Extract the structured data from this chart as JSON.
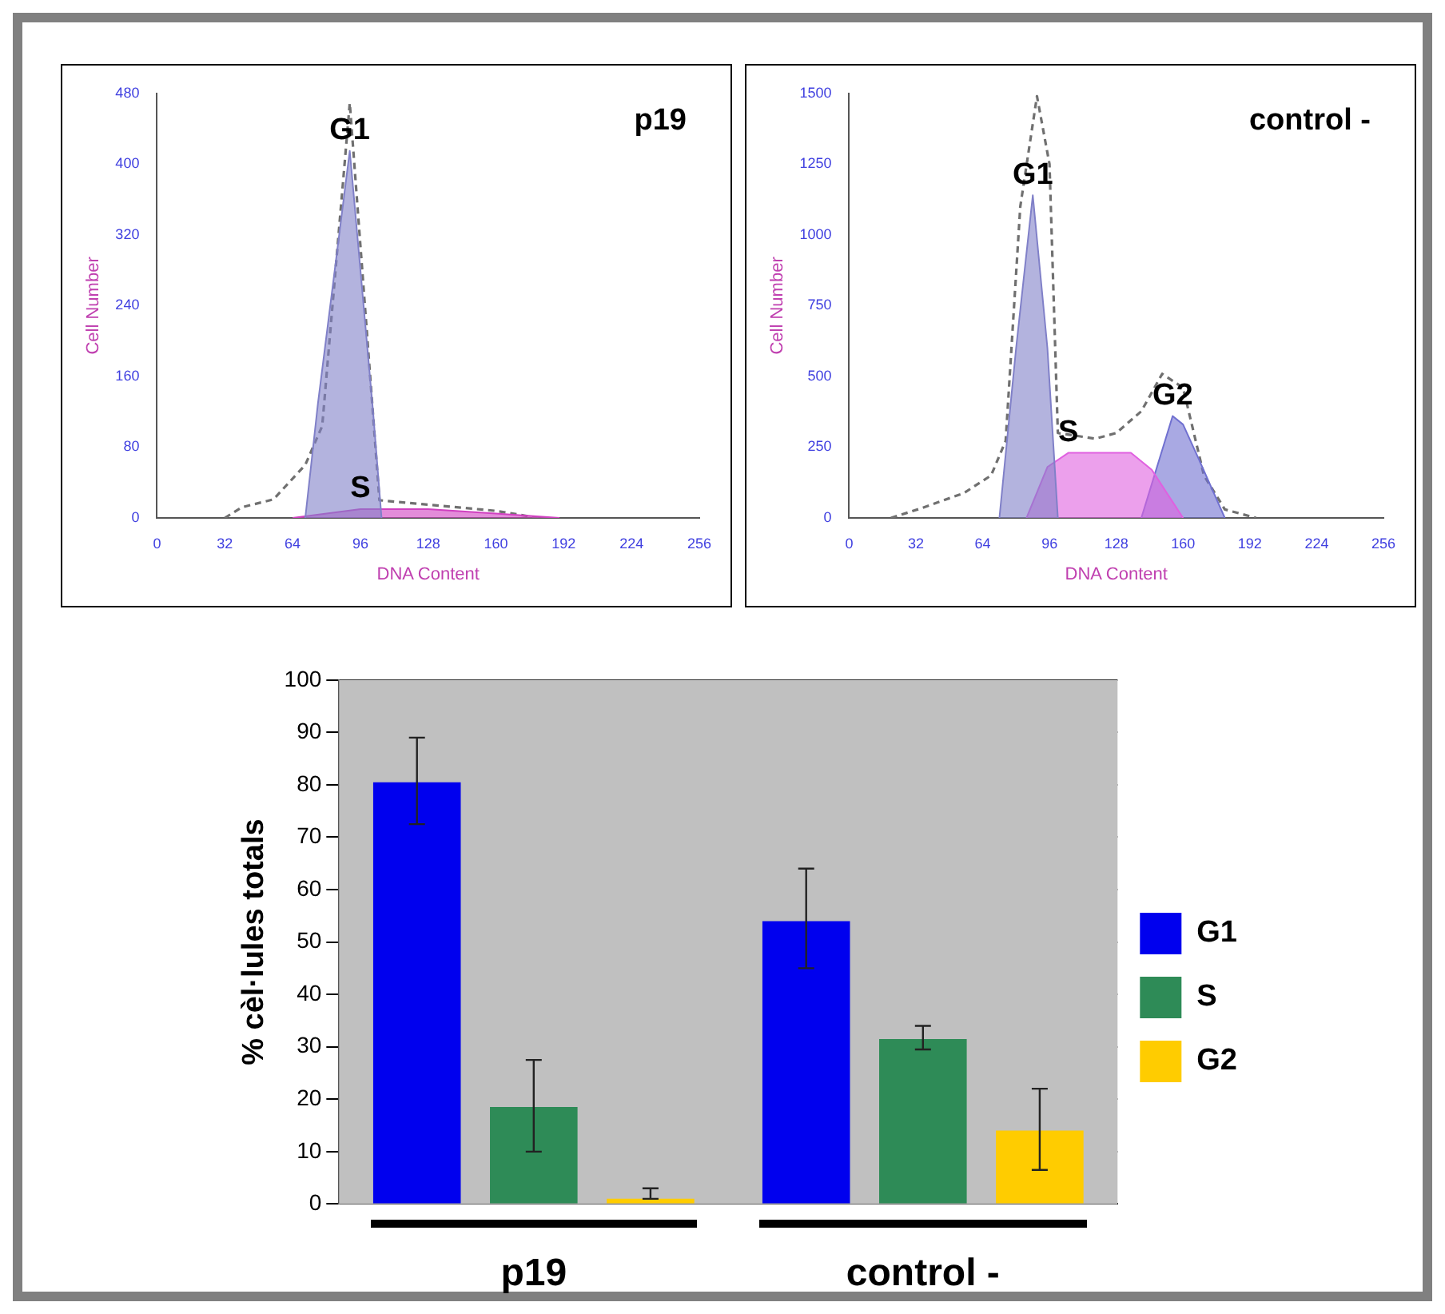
{
  "chart_data": [
    {
      "type": "area",
      "title": "p19",
      "xlabel": "DNA Content",
      "ylabel": "Cell Number",
      "xlim": [
        0,
        256
      ],
      "ylim": [
        0,
        480
      ],
      "xticks": [
        0,
        32,
        64,
        96,
        128,
        160,
        192,
        224,
        256
      ],
      "yticks": [
        0,
        80,
        160,
        240,
        320,
        400,
        480
      ],
      "series": [
        {
          "type": "area",
          "name": "G1",
          "color": "#8080c8",
          "x": [
            70,
            76,
            91,
            102,
            106
          ],
          "values": [
            0,
            130,
            415,
            120,
            0
          ]
        },
        {
          "type": "area",
          "name": "S",
          "color": "#d040c0",
          "x": [
            64,
            96,
            128,
            160,
            190
          ],
          "values": [
            0,
            10,
            10,
            5,
            0
          ]
        },
        {
          "type": "line",
          "color": "#707070",
          "line_style": "dashed",
          "x": [
            32,
            40,
            55,
            70,
            78,
            91,
            105,
            128,
            160,
            180
          ],
          "values": [
            0,
            12,
            21,
            60,
            104,
            469,
            20,
            15,
            8,
            0
          ]
        }
      ]
    },
    {
      "type": "area",
      "title": "control -",
      "xlabel": "DNA Content",
      "ylabel": "Cell Number",
      "xlim": [
        0,
        256
      ],
      "ylim": [
        0,
        1500
      ],
      "xticks": [
        0,
        32,
        64,
        96,
        128,
        160,
        192,
        224,
        256
      ],
      "yticks": [
        0,
        250,
        500,
        750,
        1000,
        1250,
        1500
      ],
      "series": [
        {
          "type": "area",
          "name": "G1",
          "color": "#8080c8",
          "x": [
            72,
            80,
            88,
            95,
            100
          ],
          "values": [
            0,
            600,
            1140,
            600,
            0
          ]
        },
        {
          "type": "area",
          "name": "S",
          "color": "#e060e0",
          "x": [
            85,
            95,
            105,
            135,
            145,
            160
          ],
          "values": [
            0,
            180,
            230,
            230,
            170,
            0
          ]
        },
        {
          "type": "area",
          "name": "G2",
          "color": "#7070d0",
          "x": [
            140,
            155,
            160,
            168,
            180
          ],
          "values": [
            0,
            360,
            330,
            200,
            0
          ]
        },
        {
          "type": "line",
          "color": "#707070",
          "line_style": "dashed",
          "x": [
            20,
            35,
            55,
            68,
            75,
            82,
            90,
            96,
            100,
            118,
            128,
            140,
            150,
            160,
            170,
            180,
            195
          ],
          "values": [
            0,
            35,
            88,
            150,
            272,
            1100,
            1490,
            1250,
            300,
            280,
            300,
            377,
            509,
            460,
            150,
            30,
            0
          ]
        }
      ]
    },
    {
      "type": "bar",
      "ylabel": "% cèl·lules totals",
      "categories": [
        "p19",
        "control -"
      ],
      "ylim": [
        0,
        100
      ],
      "yticks": [
        0,
        10,
        20,
        30,
        40,
        50,
        60,
        70,
        80,
        90,
        100
      ],
      "grid": "y",
      "legend": "right",
      "series": [
        {
          "name": "G1",
          "color": "#0000ee",
          "values": [
            80.5,
            54
          ],
          "errors": [
            [
              72.5,
              89
            ],
            [
              45,
              64
            ]
          ]
        },
        {
          "name": "S",
          "color": "#2e8b57",
          "values": [
            18.5,
            31.5
          ],
          "errors": [
            [
              10,
              27.5
            ],
            [
              29.5,
              34
            ]
          ]
        },
        {
          "name": "G2",
          "color": "#ffcc00",
          "values": [
            1,
            14
          ],
          "errors": [
            [
              1,
              3
            ],
            [
              6.5,
              22
            ]
          ]
        }
      ]
    }
  ]
}
